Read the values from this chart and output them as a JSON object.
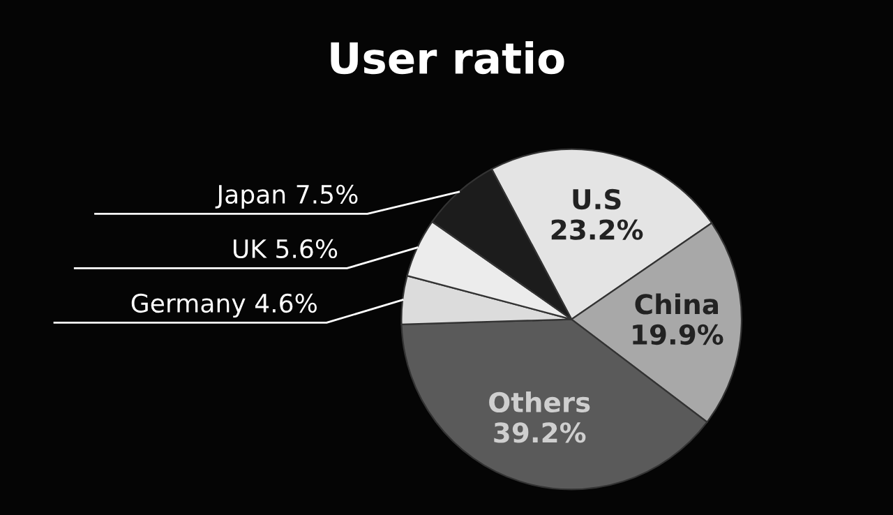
{
  "chart_data": {
    "type": "pie",
    "title": "User ratio",
    "categories": [
      "U.S",
      "China",
      "Others",
      "Germany",
      "UK",
      "Japan"
    ],
    "values": [
      23.2,
      19.9,
      39.2,
      4.6,
      5.6,
      7.5
    ],
    "colors": [
      "#e4e4e4",
      "#a8a8a8",
      "#5a5a5a",
      "#dcdcdc",
      "#ececec",
      "#1c1c1c"
    ],
    "value_labels": [
      "23.2%",
      "19.9%",
      "39.2%",
      "4.6%",
      "5.6%",
      "7.5%"
    ]
  }
}
